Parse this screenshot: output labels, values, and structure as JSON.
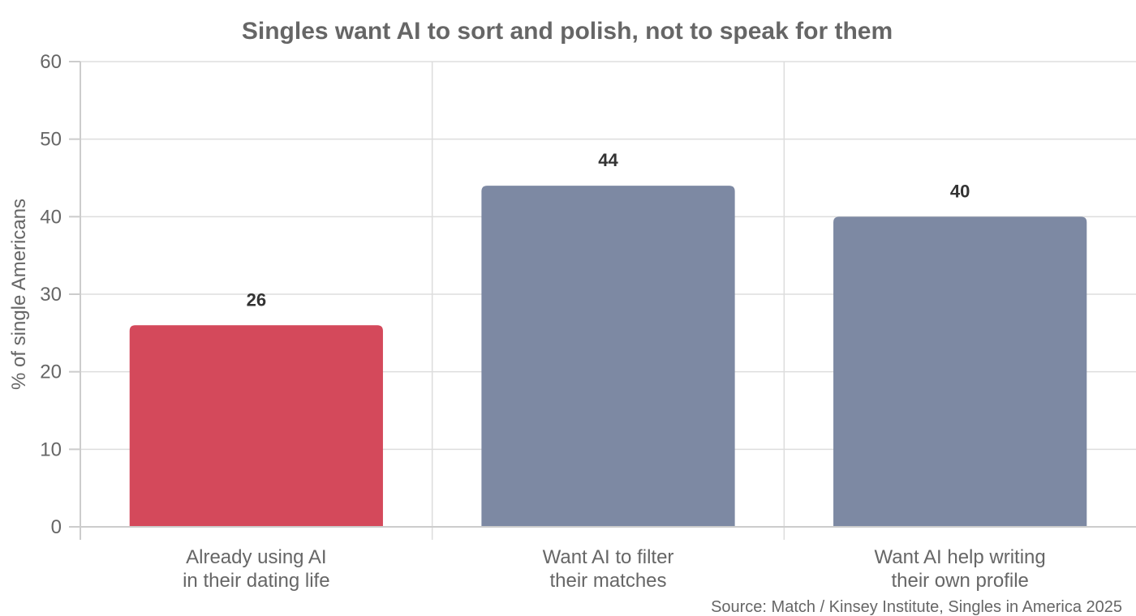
{
  "chart_data": {
    "type": "bar",
    "title": "Singles want AI to sort and polish, not to speak for them",
    "ylabel": "% of single Americans",
    "xlabel": "",
    "ylim": [
      0,
      60
    ],
    "yticks": [
      0,
      10,
      20,
      30,
      40,
      50,
      60
    ],
    "grid": true,
    "categories": [
      [
        "Already using AI",
        "in their dating life"
      ],
      [
        "Want AI to filter",
        "their matches"
      ],
      [
        "Want AI help writing",
        "their own profile"
      ]
    ],
    "values": [
      26,
      44,
      40
    ],
    "colors": [
      "#d4495b",
      "#7d89a3",
      "#7d89a3"
    ],
    "data_labels": [
      "26",
      "44",
      "40"
    ],
    "source": "Source: Match / Kinsey Institute, Singles in America 2025"
  }
}
